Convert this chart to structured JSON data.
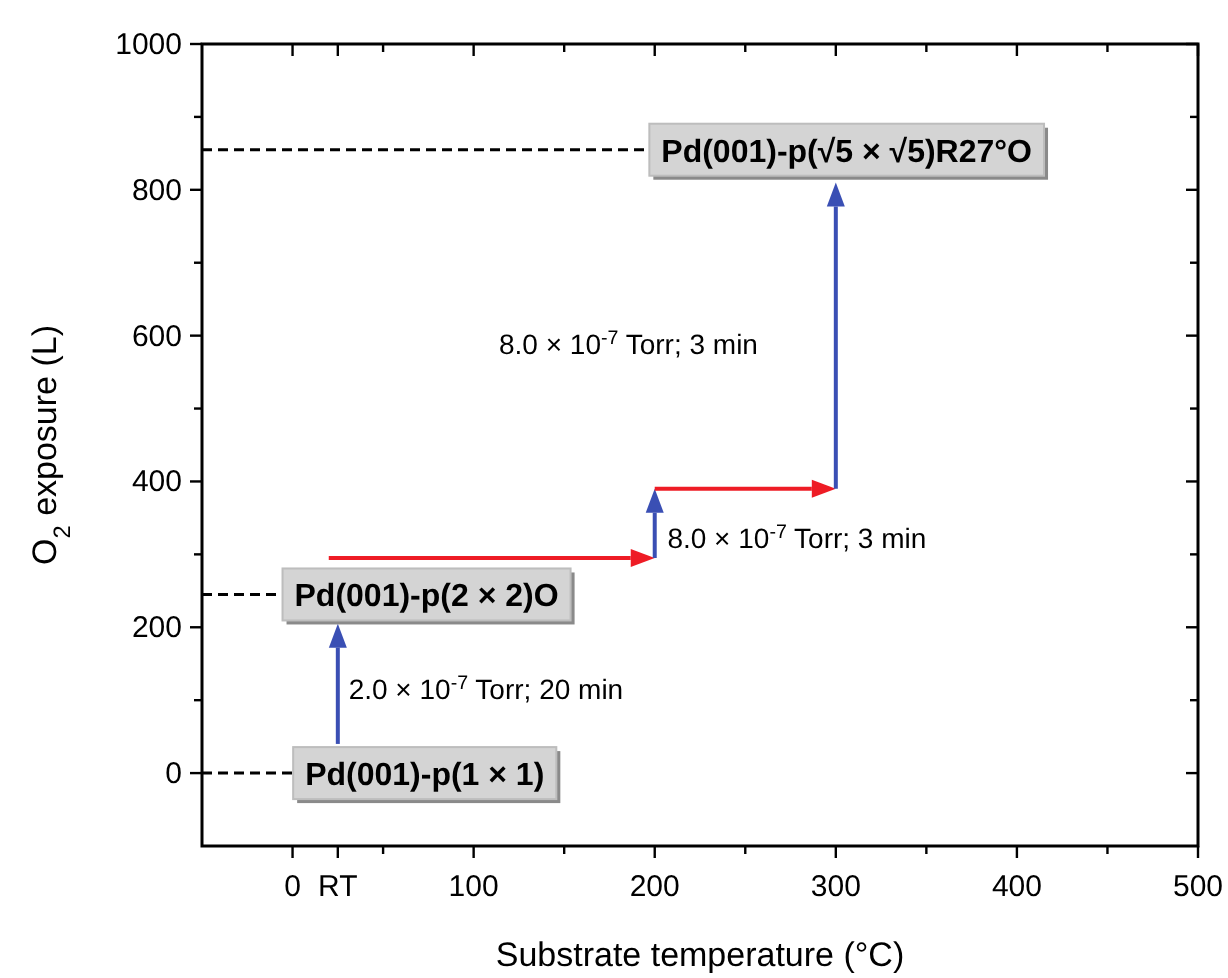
{
  "chart_data": {
    "type": "line",
    "xlabel": "Substrate temperature (°C)",
    "ylabel": "O$_{2}$ exposure (L)",
    "xlim": [
      -50,
      500
    ],
    "ylim": [
      -100,
      1000
    ],
    "xticks": [
      0,
      {
        "value": 25,
        "label": "RT"
      },
      {
        "value": 50,
        "label": null
      },
      100,
      {
        "value": 150,
        "label": null
      },
      200,
      {
        "value": 250,
        "label": null
      },
      300,
      {
        "value": 350,
        "label": null
      },
      400,
      {
        "value": 450,
        "label": null
      },
      500
    ],
    "yticks": [
      0,
      {
        "value": 100,
        "label": null
      },
      200,
      {
        "value": 300,
        "label": null
      },
      400,
      {
        "value": 500,
        "label": null
      },
      600,
      {
        "value": 700,
        "label": null
      },
      800,
      {
        "value": 900,
        "label": null
      },
      1000
    ],
    "ref_lines": [
      {
        "axis": "y",
        "value": 0,
        "label": "Pd(001)-p(1 × 1)",
        "color": "#000000",
        "line_style": "dashed"
      },
      {
        "axis": "y",
        "value": 245,
        "label": "Pd(001)-p(2 × 2)O",
        "color": "#000000",
        "line_style": "dashed"
      },
      {
        "axis": "y",
        "value": 855,
        "label": "Pd(001)-p(√5 × √5)R27°O",
        "color": "#000000",
        "line_style": "dashed"
      }
    ],
    "annotations": [
      "2.0 × 10$^{-7}$ Torr; 20 min",
      "8.0 × 10$^{-7}$ Torr; 3 min",
      "8.0 × 10$^{-7}$ Torr; 3 min"
    ],
    "grid": false
  }
}
